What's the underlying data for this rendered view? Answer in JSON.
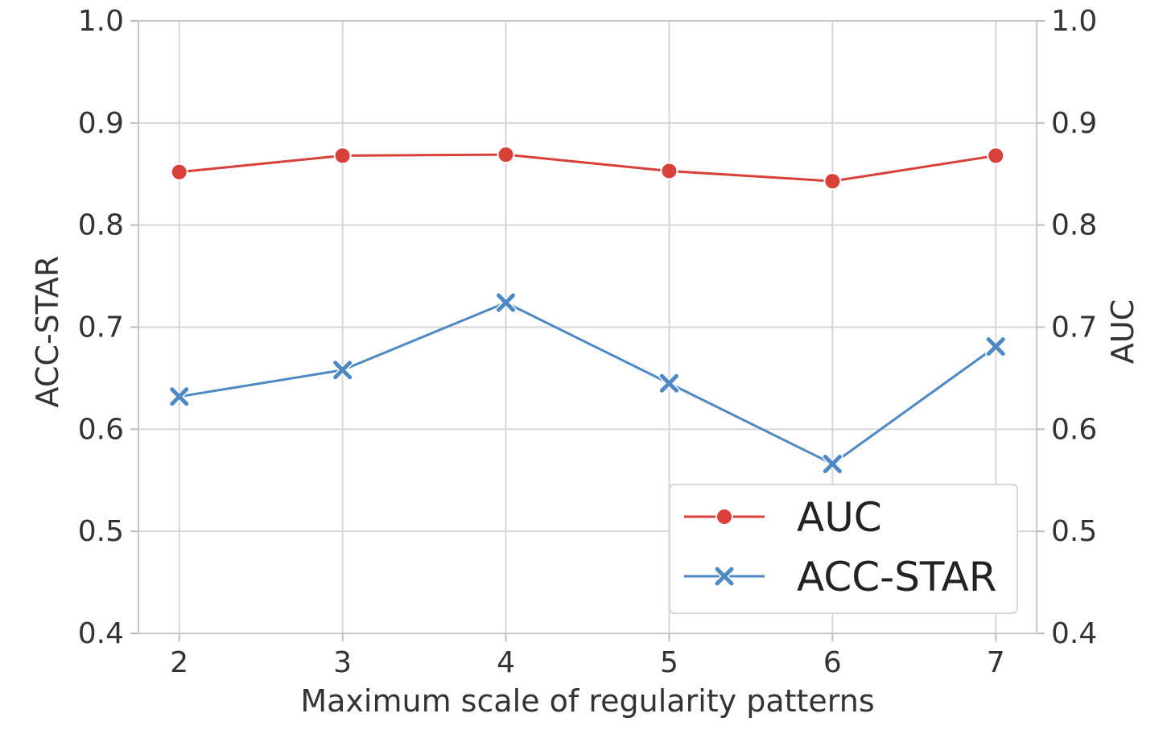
{
  "chart_data": {
    "type": "line",
    "x": [
      2,
      3,
      4,
      5,
      6,
      7
    ],
    "xlim": [
      1.75,
      7.25
    ],
    "xlabel": "Maximum scale of regularity patterns",
    "y_left": {
      "label": "ACC-STAR",
      "lim": [
        0.4,
        1.0
      ],
      "ticks": [
        "0.4",
        "0.5",
        "0.6",
        "0.7",
        "0.8",
        "0.9",
        "1.0"
      ]
    },
    "y_right": {
      "label": "AUC",
      "lim": [
        0.4,
        1.0
      ],
      "ticks": [
        "0.4",
        "0.5",
        "0.6",
        "0.7",
        "0.8",
        "0.9",
        "1.0"
      ]
    },
    "x_ticks": [
      "2",
      "3",
      "4",
      "5",
      "6",
      "7"
    ],
    "series": [
      {
        "name": "AUC",
        "axis": "right",
        "marker": "circle",
        "color": "#d9403a",
        "values": [
          0.852,
          0.868,
          0.869,
          0.853,
          0.843,
          0.868
        ]
      },
      {
        "name": "ACC-STAR",
        "axis": "left",
        "marker": "x",
        "color": "#4f89c4",
        "values": [
          0.632,
          0.658,
          0.724,
          0.645,
          0.566,
          0.681
        ]
      }
    ],
    "grid": true,
    "legend": {
      "placement": "lower-right",
      "entries": [
        "AUC",
        "ACC-STAR"
      ]
    }
  }
}
